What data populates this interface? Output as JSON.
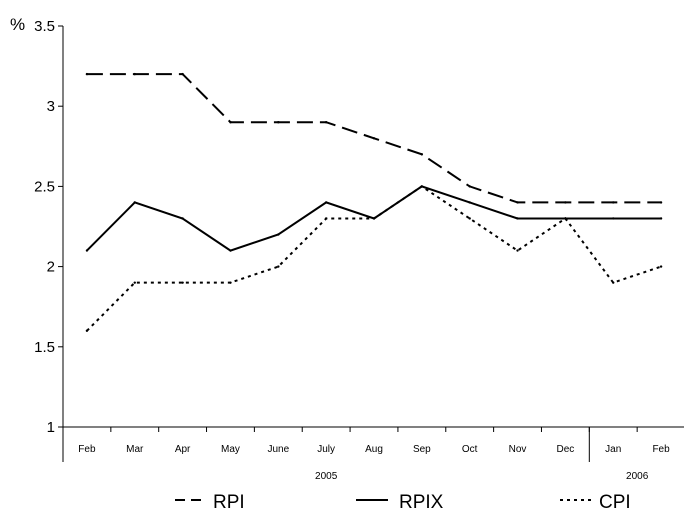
{
  "chart_data": {
    "type": "line",
    "title": "",
    "ylabel": "%",
    "xlabel": "",
    "ylim": [
      1,
      3.5
    ],
    "yticks": [
      "1",
      "1.5",
      "2",
      "2.5",
      "3",
      "3.5"
    ],
    "categories": [
      "Feb",
      "Mar",
      "Apr",
      "May",
      "June",
      "July",
      "Aug",
      "Sep",
      "Oct",
      "Nov",
      "Dec",
      "Jan",
      "Feb"
    ],
    "year_groups": [
      {
        "label": "2005",
        "start": 0,
        "end": 10
      },
      {
        "label": "2006",
        "start": 11,
        "end": 12
      }
    ],
    "grid": false,
    "legend_position": "bottom",
    "series": [
      {
        "name": "RPI",
        "style": "dashed",
        "color": "#000000",
        "values": [
          3.2,
          3.2,
          3.2,
          2.9,
          2.9,
          2.9,
          2.8,
          2.7,
          2.5,
          2.4,
          2.4,
          2.4,
          2.4
        ]
      },
      {
        "name": "RPIX",
        "style": "solid",
        "color": "#000000",
        "values": [
          2.1,
          2.4,
          2.3,
          2.1,
          2.2,
          2.4,
          2.3,
          2.5,
          2.4,
          2.3,
          2.3,
          2.3,
          2.3
        ]
      },
      {
        "name": "CPI",
        "style": "dotted",
        "color": "#000000",
        "values": [
          1.6,
          1.9,
          1.9,
          1.9,
          2.0,
          2.3,
          2.3,
          2.5,
          2.3,
          2.1,
          2.3,
          1.9,
          2.0
        ]
      }
    ]
  }
}
